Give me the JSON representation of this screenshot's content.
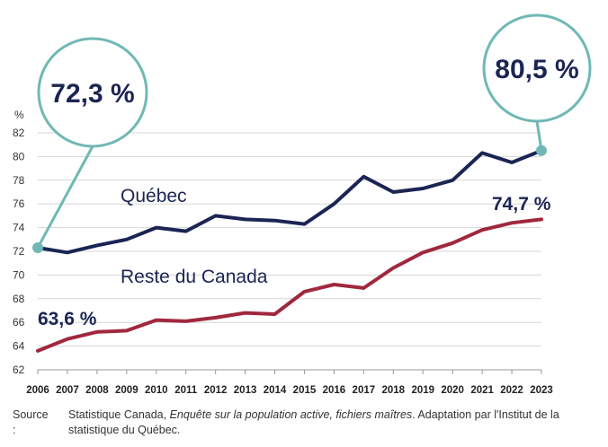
{
  "chart_data": {
    "type": "line",
    "y_unit": "%",
    "ylim": [
      62,
      82
    ],
    "y_ticks": [
      62,
      64,
      66,
      68,
      70,
      72,
      74,
      76,
      78,
      80,
      82
    ],
    "x": [
      "2006",
      "2007",
      "2008",
      "2009",
      "2010",
      "2011",
      "2012",
      "2013",
      "2014",
      "2015",
      "2016",
      "2017",
      "2018",
      "2019",
      "2020",
      "2021",
      "2022",
      "2023"
    ],
    "grid": true,
    "series": [
      {
        "name": "Québec",
        "color": "#1b2554",
        "values": [
          72.3,
          71.9,
          72.5,
          73.0,
          74.0,
          73.7,
          75.0,
          74.7,
          74.6,
          74.3,
          76.0,
          78.3,
          77.0,
          77.3,
          78.0,
          80.3,
          79.5,
          80.5
        ]
      },
      {
        "name": "Reste du Canada",
        "color": "#a0283e",
        "values": [
          63.6,
          64.6,
          65.2,
          65.3,
          66.2,
          66.1,
          66.4,
          66.8,
          66.7,
          68.6,
          69.2,
          68.9,
          70.6,
          71.9,
          72.7,
          73.8,
          74.4,
          74.7
        ]
      }
    ],
    "annotations": {
      "quebec_start": "72,3 %",
      "quebec_end": "80,5 %",
      "rest_start": "63,6 %",
      "rest_end": "74,7 %"
    },
    "callout_color": "#6fb8b5"
  },
  "source": {
    "label": "Source :",
    "text_plain": "Statistique Canada, ",
    "text_italic": "Enquête sur la population active, fichiers maîtres",
    "text_end": ". Adaptation par l'Institut de la statistique du Québec."
  }
}
